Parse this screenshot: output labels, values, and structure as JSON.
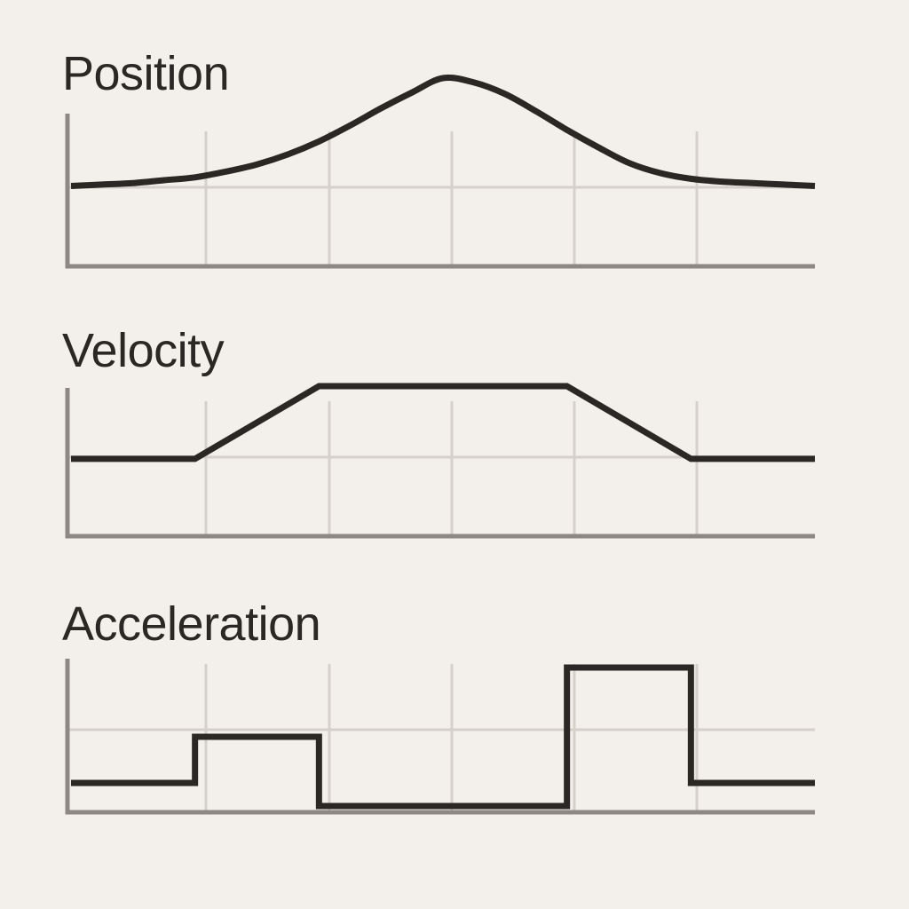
{
  "chart_data": [
    {
      "type": "line",
      "title": "Position",
      "xlim": [
        0,
        6
      ],
      "ylim": [
        0,
        1
      ],
      "grid": true,
      "x": [
        0,
        0.25,
        0.5,
        0.75,
        1,
        1.25,
        1.5,
        1.75,
        2,
        2.25,
        2.5,
        2.75,
        3,
        3.25,
        3.5,
        3.75,
        4,
        4.25,
        4.5,
        4.75,
        5,
        5.25,
        5.5,
        5.75,
        6
      ],
      "series": [
        {
          "values": [
            0.25,
            0.26,
            0.27,
            0.29,
            0.31,
            0.35,
            0.4,
            0.47,
            0.56,
            0.67,
            0.79,
            0.9,
            1.0,
            0.97,
            0.89,
            0.77,
            0.64,
            0.52,
            0.41,
            0.34,
            0.3,
            0.28,
            0.27,
            0.26,
            0.25
          ]
        }
      ]
    },
    {
      "type": "line",
      "title": "Velocity",
      "xlim": [
        0,
        6
      ],
      "ylim": [
        0,
        1
      ],
      "grid": true,
      "x": [
        0,
        1,
        2,
        4,
        5,
        6
      ],
      "series": [
        {
          "values": [
            0.3,
            0.3,
            1.0,
            1.0,
            0.3,
            0.3
          ]
        }
      ]
    },
    {
      "type": "line",
      "title": "Acceleration",
      "xlim": [
        0,
        6
      ],
      "ylim": [
        -0.2,
        1
      ],
      "grid": true,
      "step": true,
      "x": [
        0,
        1,
        2,
        4,
        5,
        6
      ],
      "series": [
        {
          "values": [
            0,
            0.4,
            -0.2,
            1.0,
            0,
            0
          ]
        }
      ]
    }
  ]
}
